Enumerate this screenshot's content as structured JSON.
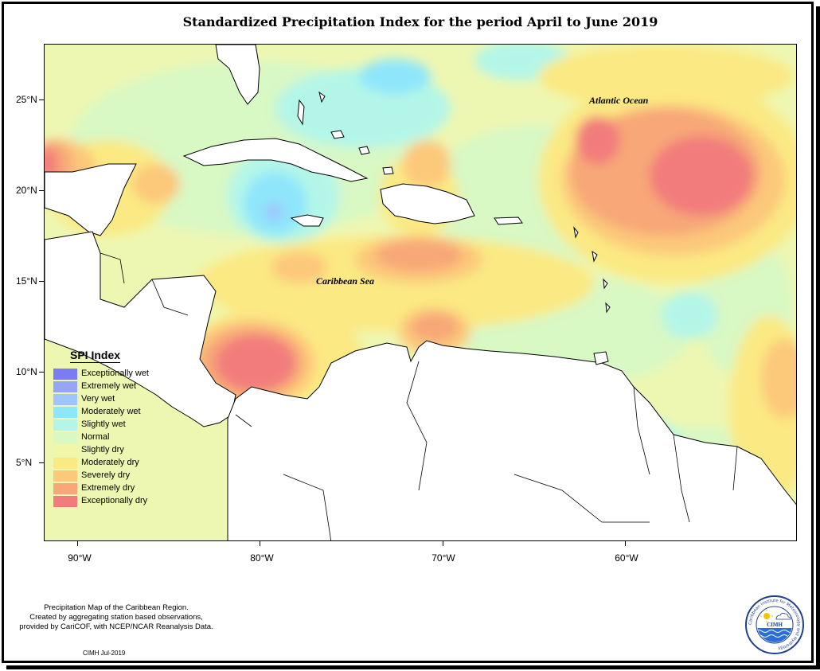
{
  "title": "Standardized Precipitation Index for the period April to June 2019",
  "axes": {
    "lat_labels": [
      "25°N",
      "20°N",
      "15°N",
      "10°N",
      "5°N"
    ],
    "lon_labels": [
      "90°W",
      "80°W",
      "70°W",
      "60°W"
    ]
  },
  "map_labels": {
    "atlantic": "Atlantic Ocean",
    "caribbean": "Caribbean Sea"
  },
  "legend": {
    "title": "SPI Index",
    "items": [
      {
        "label": "Exceptionally wet",
        "color": "#7b7bf2"
      },
      {
        "label": "Extremely wet",
        "color": "#97a6f4"
      },
      {
        "label": "Very wet",
        "color": "#9ec6fa"
      },
      {
        "label": "Moderately wet",
        "color": "#8ee6fb"
      },
      {
        "label": "Slightly wet",
        "color": "#b3f6e8"
      },
      {
        "label": "Normal",
        "color": "#d8f8c4"
      },
      {
        "label": "Slightly dry",
        "color": "#f0f7a8"
      },
      {
        "label": "Moderately dry",
        "color": "#fbe983"
      },
      {
        "label": "Severely dry",
        "color": "#fcc87a"
      },
      {
        "label": "Extremely dry",
        "color": "#f7a778"
      },
      {
        "label": "Exceptionally dry",
        "color": "#f27b7b"
      }
    ]
  },
  "footer": {
    "line1": "Precipitation Map of the Caribbean Region.",
    "line2": "Created by aggregating station based observations,",
    "line3": "provided by CariCOF, with NCEP/NCAR Reanalysis Data.",
    "credit": "CIMH Jul-2019"
  },
  "logo": {
    "text": "CIMH",
    "ring_text": "Caribbean Institute for Meteorology and Hydrology"
  }
}
